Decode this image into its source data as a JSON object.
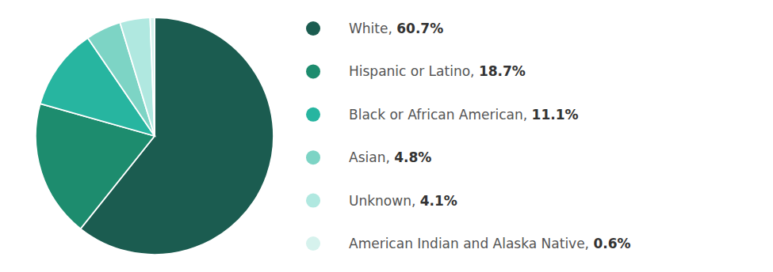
{
  "chart_data": {
    "type": "pie",
    "categories": [
      "White, ",
      "Hispanic or Latino, ",
      "Black or African American, ",
      "Asian, ",
      "Unknown, ",
      "American Indian and Alaska Native, "
    ],
    "values": [
      60.7,
      18.7,
      11.1,
      4.8,
      4.1,
      0.6
    ],
    "value_labels": [
      "60.7%",
      "18.7%",
      "11.1%",
      "4.8%",
      "4.1%",
      "0.6%"
    ],
    "colors": [
      "#1b5c50",
      "#1d8c6e",
      "#27b5a0",
      "#7dd4c5",
      "#b0e8e0",
      "#d6f2ed"
    ],
    "legend": "right"
  }
}
